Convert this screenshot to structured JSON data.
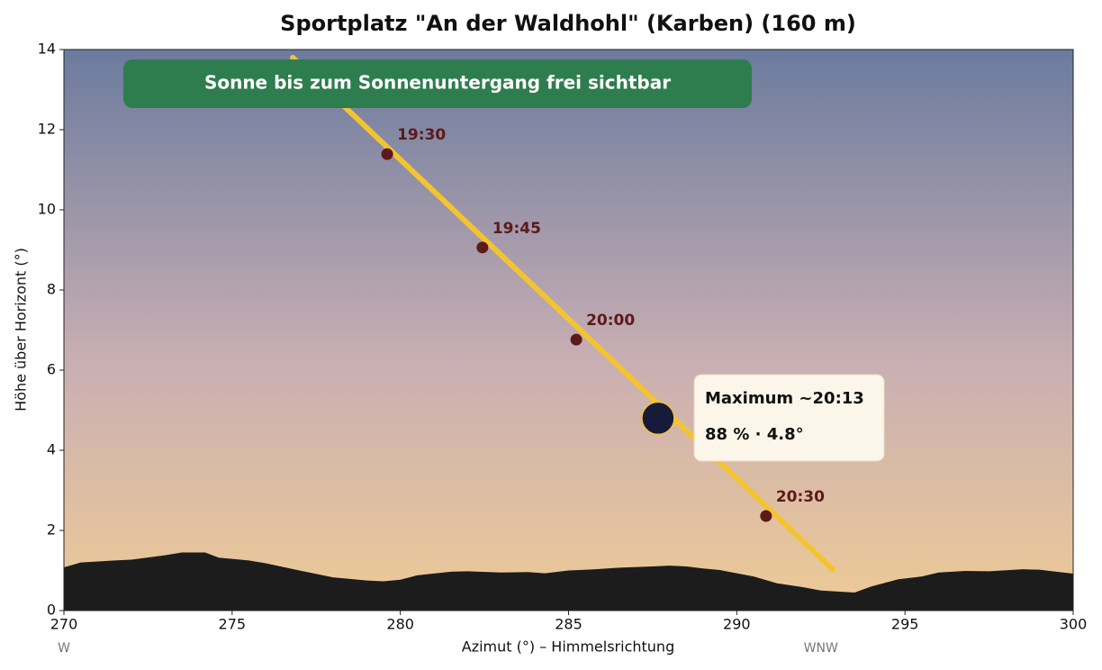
{
  "chart_data": {
    "type": "line",
    "title": "Sportplatz \"An der Waldhohl\" (Karben)  (160 m)",
    "xlabel": "Azimut (°)  –  Himmelsrichtung",
    "ylabel": "Höhe über Horizont (°)",
    "xlim": [
      270,
      300
    ],
    "ylim": [
      0,
      14
    ],
    "xticks": [
      270,
      275,
      280,
      285,
      290,
      295,
      300
    ],
    "yticks": [
      0,
      2,
      4,
      6,
      8,
      10,
      12,
      14
    ],
    "compass": [
      {
        "value": 270,
        "label": "W"
      },
      {
        "value": 292.5,
        "label": "WNW"
      }
    ],
    "banner": {
      "text": "Sonne bis zum Sonnenuntergang frei sichtbar",
      "color": "#2e7d4f"
    },
    "sun_path": {
      "color": "#f4c430",
      "x": [
        276.8,
        292.85
      ],
      "values": [
        13.8,
        1.03
      ]
    },
    "time_points": {
      "color": "#5c1a1a",
      "x": [
        279.61,
        282.44,
        285.23,
        290.87
      ],
      "values": [
        11.39,
        9.06,
        6.76,
        2.36
      ],
      "labels": [
        "19:30",
        "19:45",
        "20:00",
        "20:30"
      ]
    },
    "maximum": {
      "color": "#161b3a",
      "x": 287.66,
      "value": 4.8,
      "time_label": "Maximum ~20:13",
      "detail_label": "88 % · 4.8°"
    },
    "horizon": {
      "color": "#1c1c1c",
      "x": [
        270,
        270.5,
        271.5,
        272,
        273,
        273.5,
        274.2,
        274.6,
        275.5,
        276,
        277,
        278,
        279,
        279.5,
        280,
        280.5,
        281.5,
        282,
        283,
        283.8,
        284.3,
        285,
        285.8,
        286.5,
        287.5,
        288,
        288.5,
        289,
        289.5,
        290.5,
        291.2,
        292,
        292.5,
        293.5,
        294,
        294.8,
        295.5,
        296,
        296.8,
        297.5,
        298.5,
        299,
        300
      ],
      "values": [
        1.08,
        1.2,
        1.25,
        1.27,
        1.38,
        1.45,
        1.45,
        1.32,
        1.25,
        1.18,
        1.0,
        0.83,
        0.75,
        0.73,
        0.77,
        0.88,
        0.97,
        0.98,
        0.95,
        0.96,
        0.93,
        1.0,
        1.03,
        1.07,
        1.1,
        1.12,
        1.1,
        1.05,
        1.01,
        0.85,
        0.68,
        0.58,
        0.5,
        0.45,
        0.6,
        0.78,
        0.85,
        0.95,
        0.99,
        0.98,
        1.03,
        1.02,
        0.92
      ]
    }
  }
}
